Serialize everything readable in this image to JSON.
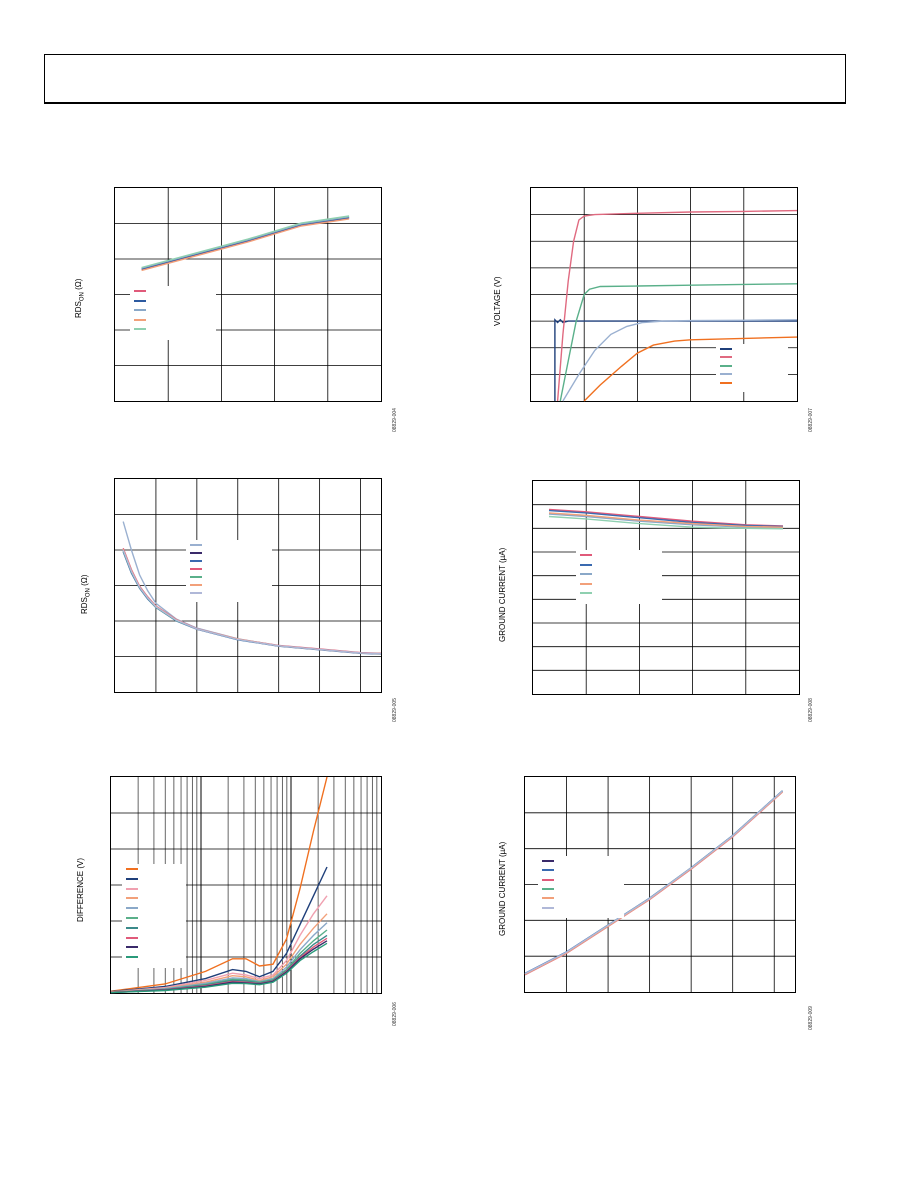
{
  "page": {
    "header_text": ""
  },
  "chart_data": [
    {
      "id": "rds-vs-temp",
      "type": "line",
      "ylabel_main": "RDS",
      "ylabel_sub": "ON",
      "ylabel_unit": " (Ω)",
      "figure_id": "08829-004",
      "xlim": [
        0,
        5
      ],
      "ylim": [
        0,
        6
      ],
      "grid": true,
      "legend": "left-middle",
      "series": [
        {
          "color": "#e05a7a",
          "x": [
            0.5,
            1.5,
            2.5,
            3.5,
            4.4
          ],
          "y": [
            3.7,
            4.1,
            4.5,
            4.95,
            5.15
          ]
        },
        {
          "color": "#2d5aa0",
          "x": [
            0.5,
            1.5,
            2.5,
            3.5,
            4.4
          ],
          "y": [
            3.72,
            4.12,
            4.52,
            4.97,
            5.17
          ]
        },
        {
          "color": "#8aa8c8",
          "x": [
            0.5,
            1.5,
            2.5,
            3.5,
            4.4
          ],
          "y": [
            3.74,
            4.14,
            4.54,
            4.99,
            5.19
          ]
        },
        {
          "color": "#f2a07a",
          "x": [
            0.5,
            1.5,
            2.5,
            3.5,
            4.4
          ],
          "y": [
            3.68,
            4.08,
            4.48,
            4.93,
            5.13
          ]
        },
        {
          "color": "#8fd0b0",
          "x": [
            0.5,
            1.5,
            2.5,
            3.5,
            4.4
          ],
          "y": [
            3.76,
            4.16,
            4.56,
            5.01,
            5.21
          ]
        }
      ]
    },
    {
      "id": "voltage-vs-time",
      "type": "line",
      "ylabel_main": "VOLTAGE (V)",
      "figure_id": "08829-007",
      "xlim": [
        0,
        5
      ],
      "ylim": [
        0,
        8
      ],
      "grid": true,
      "legend": "bottom-right",
      "series": [
        {
          "color": "#1f3f7a",
          "x": [
            0.45,
            0.45,
            0.5,
            0.55,
            0.6,
            0.7,
            5
          ],
          "y": [
            0,
            3.05,
            2.95,
            3.05,
            2.95,
            3.0,
            3.0
          ]
        },
        {
          "color": "#e06a80",
          "x": [
            0.5,
            0.6,
            0.7,
            0.8,
            0.9,
            1.0,
            1.2,
            2,
            3,
            4,
            5
          ],
          "y": [
            0,
            2.5,
            4.5,
            6.0,
            6.8,
            6.95,
            7.0,
            7.05,
            7.1,
            7.12,
            7.15
          ]
        },
        {
          "color": "#5ab08a",
          "x": [
            0.55,
            0.7,
            0.85,
            1.0,
            1.1,
            1.3,
            2,
            3,
            4,
            5
          ],
          "y": [
            0,
            1.5,
            3.0,
            4.0,
            4.2,
            4.3,
            4.32,
            4.35,
            4.38,
            4.4
          ]
        },
        {
          "color": "#9ab0d0",
          "x": [
            0.6,
            0.9,
            1.2,
            1.5,
            1.8,
            2.1,
            2.5,
            3,
            4,
            5
          ],
          "y": [
            0,
            1.0,
            1.9,
            2.5,
            2.8,
            2.95,
            3.0,
            3.02,
            3.03,
            3.05
          ]
        },
        {
          "color": "#f07020",
          "x": [
            1.0,
            1.3,
            1.7,
            2.0,
            2.3,
            2.7,
            3,
            4,
            5
          ],
          "y": [
            0,
            0.6,
            1.3,
            1.8,
            2.1,
            2.25,
            2.3,
            2.35,
            2.4
          ]
        }
      ]
    },
    {
      "id": "rds-vs-voltage",
      "type": "line",
      "ylabel_main": "RDS",
      "ylabel_sub": "ON",
      "ylabel_unit": " (Ω)",
      "figure_id": "08829-005",
      "xlim": [
        0,
        6.5
      ],
      "ylim": [
        0,
        6
      ],
      "grid": true,
      "legend": "top-middle",
      "series": [
        {
          "color": "#9ab0d0",
          "x": [
            0.2,
            0.4,
            0.6,
            0.8,
            1.0,
            1.5,
            2,
            3,
            4,
            5,
            6,
            6.5
          ],
          "y": [
            4.8,
            4.0,
            3.3,
            2.85,
            2.5,
            2.05,
            1.8,
            1.5,
            1.3,
            1.2,
            1.1,
            1.08
          ]
        },
        {
          "color": "#3a2a6a",
          "x": [
            0.2,
            0.4,
            0.6,
            0.8,
            1.0,
            1.5,
            2,
            3,
            4,
            5,
            6,
            6.5
          ],
          "y": [
            4.0,
            3.4,
            2.95,
            2.65,
            2.4,
            2.02,
            1.78,
            1.48,
            1.3,
            1.2,
            1.1,
            1.08
          ]
        },
        {
          "color": "#3a6ab0",
          "x": [
            0.2,
            0.4,
            0.6,
            0.8,
            1.0,
            1.5,
            2,
            3,
            4,
            5,
            6,
            6.5
          ],
          "y": [
            3.95,
            3.35,
            2.92,
            2.62,
            2.38,
            2.0,
            1.77,
            1.47,
            1.29,
            1.19,
            1.09,
            1.07
          ]
        },
        {
          "color": "#e05a7a",
          "x": [
            0.2,
            0.4,
            0.6,
            0.8,
            1.0,
            1.5,
            2,
            3,
            4,
            5,
            6,
            6.5
          ],
          "y": [
            4.05,
            3.45,
            2.98,
            2.68,
            2.42,
            2.04,
            1.79,
            1.49,
            1.31,
            1.21,
            1.11,
            1.09
          ]
        },
        {
          "color": "#5ab08a",
          "x": [
            0.2,
            0.4,
            0.6,
            0.8,
            1.0,
            1.5,
            2,
            3,
            4,
            5,
            6,
            6.5
          ],
          "y": [
            3.98,
            3.38,
            2.94,
            2.64,
            2.39,
            2.01,
            1.78,
            1.48,
            1.3,
            1.2,
            1.1,
            1.08
          ]
        },
        {
          "color": "#f2a07a",
          "x": [
            0.2,
            0.4,
            0.6,
            0.8,
            1.0,
            1.5,
            2,
            3,
            4,
            5,
            6,
            6.5
          ],
          "y": [
            4.02,
            3.42,
            2.96,
            2.66,
            2.41,
            2.03,
            1.78,
            1.49,
            1.3,
            1.2,
            1.1,
            1.08
          ]
        },
        {
          "color": "#b0b8d8",
          "x": [
            0.2,
            0.4,
            0.6,
            0.8,
            1.0,
            1.5,
            2,
            3,
            4,
            5,
            6,
            6.5
          ],
          "y": [
            4.0,
            3.4,
            2.95,
            2.65,
            2.4,
            2.02,
            1.78,
            1.48,
            1.3,
            1.2,
            1.1,
            1.08
          ]
        }
      ]
    },
    {
      "id": "ground-current-vs-temp",
      "type": "line",
      "ylabel_main": "GROUND CURRENT (µA)",
      "figure_id": "08829-008",
      "xlim": [
        0,
        5
      ],
      "ylim": [
        0,
        9
      ],
      "grid": true,
      "legend": "left-middle",
      "series": [
        {
          "color": "#e05a7a",
          "x": [
            0.3,
            1,
            2,
            3,
            4,
            4.7
          ],
          "y": [
            7.8,
            7.7,
            7.5,
            7.3,
            7.15,
            7.1
          ]
        },
        {
          "color": "#3a6ab0",
          "x": [
            0.3,
            1,
            2,
            3,
            4,
            4.7
          ],
          "y": [
            7.75,
            7.65,
            7.45,
            7.25,
            7.12,
            7.08
          ]
        },
        {
          "color": "#8aa8c8",
          "x": [
            0.3,
            1,
            2,
            3,
            4,
            4.7
          ],
          "y": [
            7.6,
            7.5,
            7.3,
            7.15,
            7.05,
            7.0
          ]
        },
        {
          "color": "#f2a07a",
          "x": [
            0.3,
            1,
            2,
            3,
            4,
            4.7
          ],
          "y": [
            7.65,
            7.55,
            7.35,
            7.2,
            7.08,
            7.05
          ]
        },
        {
          "color": "#8fd0b0",
          "x": [
            0.3,
            1,
            2,
            3,
            4,
            4.7
          ],
          "y": [
            7.5,
            7.4,
            7.2,
            7.05,
            7.0,
            6.98
          ]
        }
      ]
    },
    {
      "id": "difference-vs-frequency",
      "type": "line",
      "ylabel_main": "DIFFERENCE (V)",
      "figure_id": "08829-006",
      "xlim": [
        0,
        1
      ],
      "ylim": [
        0,
        6
      ],
      "grid": true,
      "legend": "left-middle",
      "series": [
        {
          "color": "#f07020",
          "x": [
            0,
            0.2,
            0.35,
            0.45,
            0.5,
            0.55,
            0.6,
            0.65,
            0.7,
            0.75,
            0.8
          ],
          "y": [
            0.05,
            0.25,
            0.6,
            0.95,
            0.95,
            0.75,
            0.8,
            1.5,
            2.9,
            4.5,
            6.0
          ]
        },
        {
          "color": "#1f3f7a",
          "x": [
            0,
            0.2,
            0.35,
            0.45,
            0.5,
            0.55,
            0.6,
            0.65,
            0.7,
            0.75,
            0.8
          ],
          "y": [
            0.04,
            0.18,
            0.4,
            0.65,
            0.6,
            0.45,
            0.6,
            1.1,
            1.9,
            2.7,
            3.5
          ]
        },
        {
          "color": "#f0a0b0",
          "x": [
            0,
            0.2,
            0.35,
            0.45,
            0.5,
            0.55,
            0.6,
            0.65,
            0.7,
            0.75,
            0.8
          ],
          "y": [
            0.03,
            0.15,
            0.35,
            0.55,
            0.5,
            0.4,
            0.5,
            0.9,
            1.6,
            2.2,
            2.7
          ]
        },
        {
          "color": "#f2a07a",
          "x": [
            0,
            0.2,
            0.35,
            0.45,
            0.5,
            0.55,
            0.6,
            0.65,
            0.7,
            0.75,
            0.8
          ],
          "y": [
            0.03,
            0.13,
            0.3,
            0.48,
            0.45,
            0.35,
            0.45,
            0.8,
            1.35,
            1.8,
            2.2
          ]
        },
        {
          "color": "#8aa8c8",
          "x": [
            0,
            0.2,
            0.35,
            0.45,
            0.5,
            0.55,
            0.6,
            0.65,
            0.7,
            0.75,
            0.8
          ],
          "y": [
            0.02,
            0.12,
            0.27,
            0.42,
            0.4,
            0.32,
            0.4,
            0.72,
            1.2,
            1.6,
            1.95
          ]
        },
        {
          "color": "#5ab08a",
          "x": [
            0,
            0.2,
            0.35,
            0.45,
            0.5,
            0.55,
            0.6,
            0.65,
            0.7,
            0.75,
            0.8
          ],
          "y": [
            0.02,
            0.1,
            0.24,
            0.38,
            0.36,
            0.3,
            0.37,
            0.65,
            1.1,
            1.45,
            1.75
          ]
        },
        {
          "color": "#3a8a8a",
          "x": [
            0,
            0.2,
            0.35,
            0.45,
            0.5,
            0.55,
            0.6,
            0.65,
            0.7,
            0.75,
            0.8
          ],
          "y": [
            0.02,
            0.1,
            0.22,
            0.35,
            0.33,
            0.28,
            0.35,
            0.62,
            1.02,
            1.35,
            1.6
          ]
        },
        {
          "color": "#e05a7a",
          "x": [
            0,
            0.2,
            0.35,
            0.45,
            0.5,
            0.55,
            0.6,
            0.65,
            0.7,
            0.75,
            0.8
          ],
          "y": [
            0.02,
            0.09,
            0.2,
            0.32,
            0.3,
            0.26,
            0.33,
            0.6,
            0.98,
            1.28,
            1.52
          ]
        },
        {
          "color": "#3a2a6a",
          "x": [
            0,
            0.2,
            0.35,
            0.45,
            0.5,
            0.55,
            0.6,
            0.65,
            0.7,
            0.75,
            0.8
          ],
          "y": [
            0.01,
            0.08,
            0.18,
            0.3,
            0.28,
            0.25,
            0.32,
            0.58,
            0.95,
            1.22,
            1.45
          ]
        },
        {
          "color": "#2a9a7a",
          "x": [
            0,
            0.2,
            0.35,
            0.45,
            0.5,
            0.55,
            0.6,
            0.65,
            0.7,
            0.75,
            0.8
          ],
          "y": [
            0.01,
            0.07,
            0.16,
            0.27,
            0.26,
            0.23,
            0.3,
            0.55,
            0.9,
            1.15,
            1.38
          ]
        }
      ]
    },
    {
      "id": "ground-current-vs-voltage",
      "type": "line",
      "ylabel_main": "GROUND CURRENT (µA)",
      "figure_id": "08829-009",
      "xlim": [
        0,
        6.5
      ],
      "ylim": [
        0,
        6
      ],
      "grid": true,
      "legend": "left-middle",
      "series": [
        {
          "color": "#3a2a6a",
          "x": [
            0,
            1,
            2,
            3,
            4,
            5,
            6.2
          ],
          "y": [
            0.5,
            1.1,
            1.85,
            2.6,
            3.45,
            4.35,
            5.6
          ]
        },
        {
          "color": "#3a6ab0",
          "x": [
            0,
            1,
            2,
            3,
            4,
            5,
            6.2
          ],
          "y": [
            0.52,
            1.12,
            1.87,
            2.62,
            3.47,
            4.37,
            5.62
          ]
        },
        {
          "color": "#e05a7a",
          "x": [
            0,
            1,
            2,
            3,
            4,
            5,
            6.2
          ],
          "y": [
            0.48,
            1.08,
            1.83,
            2.58,
            3.43,
            4.33,
            5.58
          ]
        },
        {
          "color": "#5ab08a",
          "x": [
            0,
            1,
            2,
            3,
            4,
            5,
            6.2
          ],
          "y": [
            0.5,
            1.1,
            1.86,
            2.61,
            3.46,
            4.36,
            5.61
          ]
        },
        {
          "color": "#f2a07a",
          "x": [
            0,
            1,
            2,
            3,
            4,
            5,
            6.2
          ],
          "y": [
            0.49,
            1.09,
            1.84,
            2.59,
            3.44,
            4.34,
            5.59
          ]
        },
        {
          "color": "#b0b8d8",
          "x": [
            0,
            1,
            2,
            3,
            4,
            5,
            6.2
          ],
          "y": [
            0.51,
            1.11,
            1.86,
            2.61,
            3.46,
            4.36,
            5.61
          ]
        }
      ]
    }
  ]
}
